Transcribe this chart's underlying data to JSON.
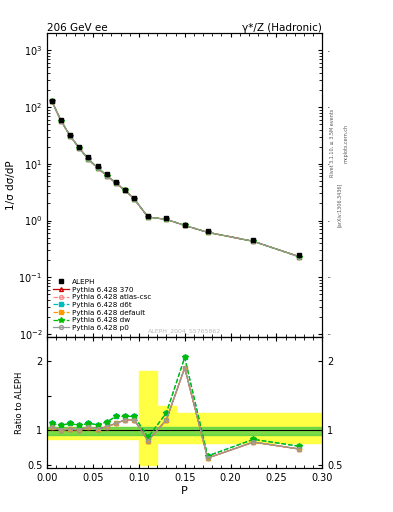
{
  "title_left": "206 GeV ee",
  "title_right": "γ*/Z (Hadronic)",
  "ylabel_main": "1/σ dσ/dP",
  "ylabel_ratio": "Ratio to ALEPH",
  "xlabel": "P",
  "watermark": "ALEPH_2004_S5765862",
  "rivet_label": "Rivet 3.1.10, ≥ 3.5M events",
  "arxiv_label": "[arXiv:1306.3436]",
  "mcplots_label": "mcplots.cern.ch",
  "aleph_x": [
    0.005,
    0.015,
    0.025,
    0.035,
    0.045,
    0.055,
    0.065,
    0.075,
    0.085,
    0.095,
    0.11,
    0.13,
    0.15,
    0.175,
    0.225,
    0.275
  ],
  "aleph_y": [
    130,
    60,
    32,
    20,
    13,
    9,
    6.5,
    4.8,
    3.5,
    2.5,
    1.2,
    1.1,
    0.85,
    0.65,
    0.45,
    0.25
  ],
  "mc_x": [
    0.005,
    0.015,
    0.025,
    0.035,
    0.045,
    0.055,
    0.065,
    0.075,
    0.085,
    0.095,
    0.11,
    0.13,
    0.15,
    0.175,
    0.225,
    0.275
  ],
  "mc_y": [
    128,
    58,
    31,
    19,
    12,
    8.5,
    6.2,
    4.6,
    3.4,
    2.4,
    1.15,
    1.05,
    0.82,
    0.62,
    0.43,
    0.23
  ],
  "p370_ratio": [
    1.05,
    1.0,
    1.02,
    1.0,
    1.05,
    1.02,
    1.05,
    1.1,
    1.15,
    1.15,
    0.85,
    1.15,
    1.9,
    0.6,
    0.83,
    0.73
  ],
  "patlas_ratio": [
    1.05,
    1.0,
    1.02,
    1.0,
    1.05,
    1.02,
    1.05,
    1.1,
    1.15,
    1.15,
    0.85,
    1.15,
    1.9,
    0.6,
    0.83,
    0.73
  ],
  "pd6t_ratio": [
    1.1,
    1.07,
    1.1,
    1.07,
    1.1,
    1.08,
    1.12,
    1.2,
    1.2,
    1.2,
    0.9,
    1.25,
    2.05,
    0.63,
    0.87,
    0.77
  ],
  "pdef_ratio": [
    1.05,
    1.0,
    1.02,
    1.0,
    1.05,
    1.02,
    1.05,
    1.1,
    1.15,
    1.15,
    0.85,
    1.15,
    1.9,
    0.6,
    0.83,
    0.73
  ],
  "pdw_ratio": [
    1.1,
    1.07,
    1.1,
    1.07,
    1.1,
    1.08,
    1.12,
    1.2,
    1.2,
    1.2,
    0.9,
    1.25,
    2.05,
    0.63,
    0.87,
    0.77
  ],
  "pp0_ratio": [
    1.05,
    1.0,
    1.02,
    1.0,
    1.05,
    1.02,
    1.05,
    1.1,
    1.15,
    1.15,
    0.85,
    1.15,
    1.9,
    0.6,
    0.83,
    0.73
  ],
  "color_370": "#cc0000",
  "color_atlas": "#ff8888",
  "color_d6t": "#00bbbb",
  "color_default": "#ff9900",
  "color_dw": "#00bb00",
  "color_p0": "#999999",
  "color_aleph": "#000000",
  "ylim_main": [
    0.009,
    2000
  ],
  "xlim": [
    0.0,
    0.3
  ],
  "ylim_ratio": [
    0.45,
    2.35
  ]
}
